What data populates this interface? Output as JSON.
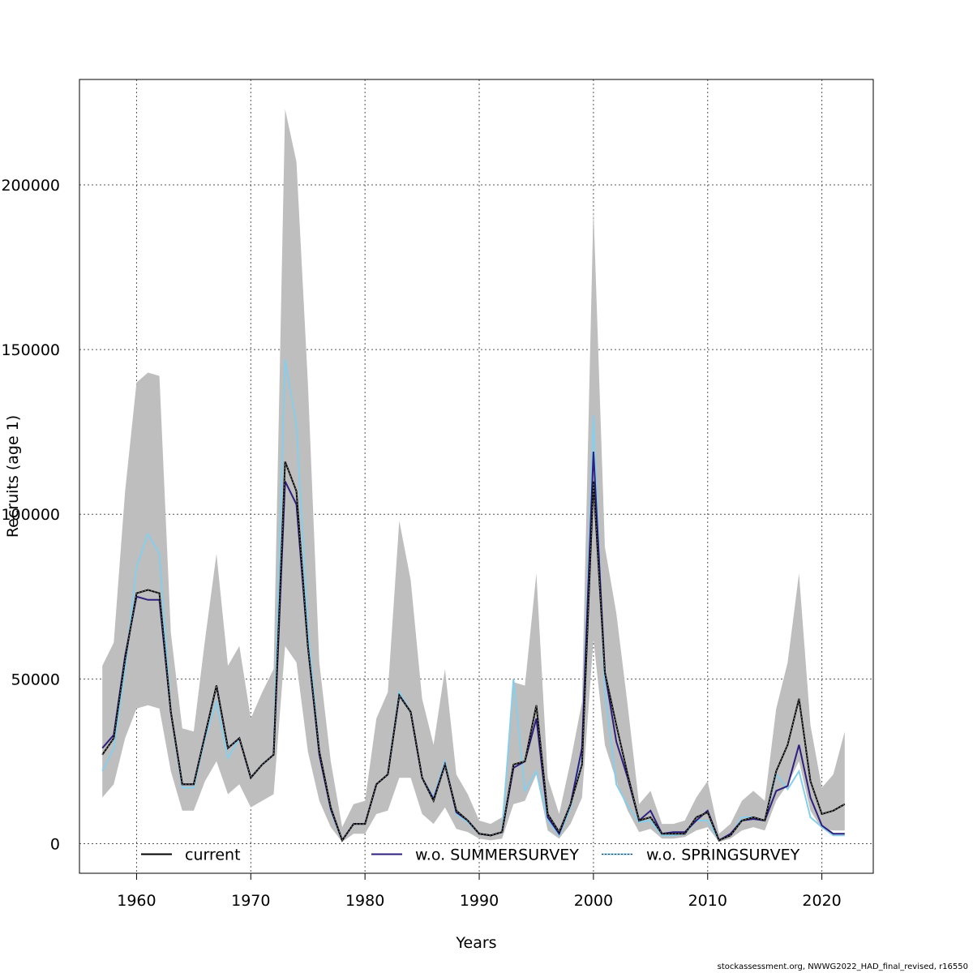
{
  "footer": "stockassessment.org, NWWG2022_HAD_final_revised, r16550",
  "chart_data": {
    "type": "line",
    "title": "",
    "xlabel": "Years",
    "ylabel": "Recruits (age 1)",
    "xlim": [
      1955,
      2024.5
    ],
    "ylim": [
      -9000,
      232000
    ],
    "xticks": [
      1960,
      1970,
      1980,
      1990,
      2000,
      2010,
      2020
    ],
    "yticks": [
      0,
      50000,
      100000,
      150000,
      200000
    ],
    "grid": true,
    "legend_position": "bottom",
    "band_color": "#bebebe",
    "x": [
      1957,
      1958,
      1959,
      1960,
      1961,
      1962,
      1963,
      1964,
      1965,
      1966,
      1967,
      1968,
      1969,
      1970,
      1971,
      1972,
      1973,
      1974,
      1975,
      1976,
      1977,
      1978,
      1979,
      1980,
      1981,
      1982,
      1983,
      1984,
      1985,
      1986,
      1987,
      1988,
      1989,
      1990,
      1991,
      1992,
      1993,
      1994,
      1995,
      1996,
      1997,
      1998,
      1999,
      2000,
      2001,
      2002,
      2003,
      2004,
      2005,
      2006,
      2007,
      2008,
      2009,
      2010,
      2011,
      2012,
      2013,
      2014,
      2015,
      2016,
      2017,
      2018,
      2019,
      2020,
      2021,
      2022
    ],
    "confidence_band": {
      "upper": [
        54000,
        61000,
        107000,
        140000,
        143000,
        142000,
        64000,
        35000,
        34000,
        62000,
        88000,
        54000,
        60000,
        38000,
        46000,
        53000,
        223000,
        207000,
        140000,
        55000,
        25000,
        5000,
        12000,
        13000,
        38000,
        46000,
        98000,
        80000,
        44000,
        30000,
        53000,
        21000,
        15000,
        7000,
        6000,
        8000,
        49000,
        48000,
        82000,
        20000,
        9000,
        25000,
        43000,
        193000,
        90000,
        70000,
        42000,
        12000,
        16000,
        6000,
        6000,
        7000,
        14000,
        19000,
        3000,
        6000,
        13000,
        16000,
        13000,
        41000,
        55000,
        82000,
        36000,
        17000,
        21000,
        34000
      ],
      "lower": [
        14000,
        18000,
        32000,
        41000,
        42000,
        41000,
        22000,
        10000,
        10000,
        19000,
        25000,
        15000,
        18000,
        11000,
        13000,
        15000,
        60000,
        55000,
        28000,
        13000,
        5000,
        500,
        3000,
        3000,
        9000,
        10000,
        20000,
        20000,
        9000,
        6000,
        11000,
        4500,
        3500,
        1500,
        1000,
        1500,
        12000,
        13000,
        21000,
        4000,
        1500,
        6000,
        14000,
        62000,
        30000,
        19000,
        10000,
        3500,
        4500,
        1500,
        1500,
        2000,
        4000,
        5000,
        500,
        1500,
        4000,
        5000,
        4000,
        13000,
        18000,
        25000,
        10000,
        4500,
        4000,
        4000
      ]
    },
    "series": [
      {
        "name": "current",
        "color": "#000000",
        "dash": "solid",
        "values": [
          27000,
          32000,
          56000,
          76000,
          77000,
          76000,
          40000,
          18000,
          18000,
          33000,
          48000,
          29000,
          32000,
          20000,
          24000,
          27000,
          116000,
          107000,
          60000,
          28000,
          11000,
          1000,
          6000,
          6000,
          18000,
          21000,
          45000,
          40000,
          20000,
          13000,
          24000,
          10000,
          7000,
          3000,
          2500,
          3500,
          24000,
          25000,
          42000,
          9000,
          3500,
          12000,
          24000,
          110000,
          52000,
          36000,
          21000,
          7000,
          8000,
          3000,
          3000,
          3000,
          8000,
          9500,
          1000,
          2500,
          7000,
          8000,
          7000,
          22000,
          30000,
          44000,
          19000,
          9000,
          10000,
          12000
        ]
      },
      {
        "name": "w.o. SUMMERSURVEY",
        "color": "#2e1e7e",
        "dash": "solid",
        "values": [
          29000,
          33000,
          57000,
          75000,
          74000,
          74000,
          40000,
          18000,
          18000,
          33000,
          48000,
          29000,
          32000,
          20000,
          24000,
          27000,
          110000,
          103000,
          60000,
          27000,
          10500,
          1000,
          6000,
          6000,
          18000,
          21000,
          45000,
          40000,
          20000,
          13500,
          24000,
          9500,
          7000,
          3000,
          2500,
          3500,
          23000,
          25000,
          38000,
          8000,
          3000,
          12000,
          29000,
          119000,
          52000,
          31000,
          20000,
          7000,
          10000,
          3000,
          3500,
          3500,
          7000,
          10000,
          1000,
          3000,
          7000,
          7500,
          7000,
          16000,
          17500,
          30000,
          14000,
          5500,
          3000,
          3000
        ]
      },
      {
        "name": "w.o. SPRINGSURVEY",
        "color": "#87ceeb",
        "dash": "dotted",
        "values": [
          22000,
          29000,
          53000,
          84000,
          94000,
          88000,
          40000,
          17000,
          17000,
          32000,
          43000,
          26000,
          32000,
          20000,
          24000,
          27000,
          147000,
          127000,
          65000,
          28000,
          10000,
          1000,
          6000,
          6000,
          18000,
          21000,
          46000,
          40000,
          20000,
          14000,
          25000,
          9000,
          6500,
          3000,
          2500,
          3500,
          50000,
          16000,
          22000,
          7000,
          2500,
          11000,
          28000,
          130000,
          46000,
          18000,
          11500,
          6500,
          7000,
          2500,
          2500,
          3000,
          7000,
          7000,
          1000,
          2500,
          8000,
          8000,
          7000,
          21000,
          16500,
          22000,
          8000,
          5000,
          2500,
          2500
        ]
      }
    ]
  }
}
